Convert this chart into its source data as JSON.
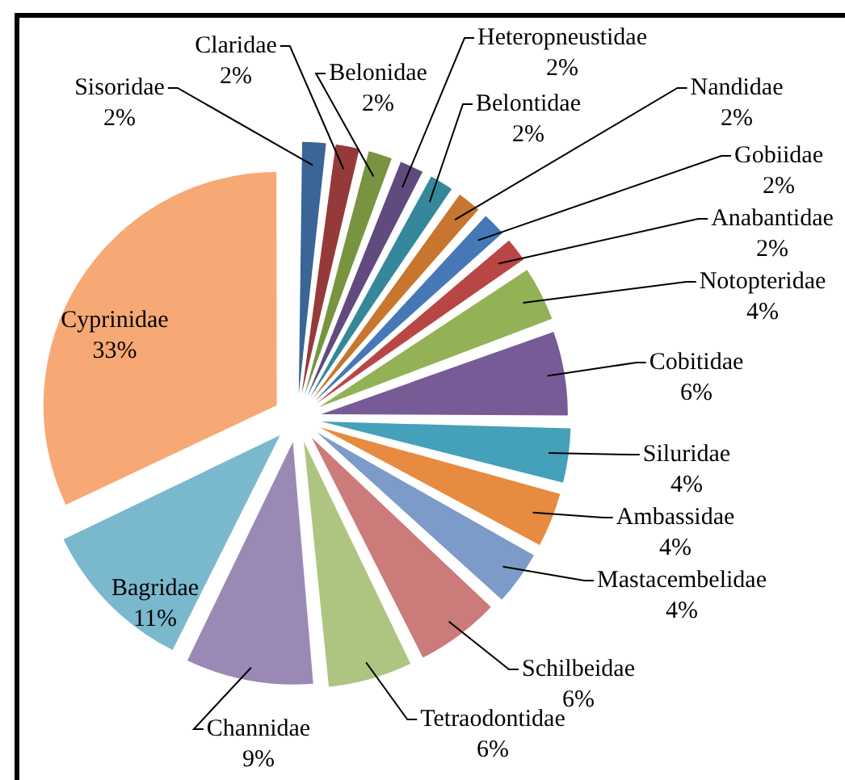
{
  "chart_data": {
    "type": "pie",
    "categories": [
      "Sisoridae",
      "Claridae",
      "Belonidae",
      "Heteropneustidae",
      "Belontidae",
      "Nandidae",
      "Gobiidae",
      "Anabantidae",
      "Notopteridae",
      "Cobitidae",
      "Siluridae",
      "Ambassidae",
      "Mastacembelidae",
      "Schilbeidae",
      "Tetraodontidae",
      "Channidae",
      "Bagridae",
      "Cyprinidae"
    ],
    "values": [
      2,
      2,
      2,
      2,
      2,
      2,
      2,
      2,
      4,
      6,
      4,
      4,
      4,
      6,
      6,
      9,
      11,
      33
    ],
    "value_labels": [
      "2%",
      "2%",
      "2%",
      "2%",
      "2%",
      "2%",
      "2%",
      "2%",
      "4%",
      "6%",
      "4%",
      "4%",
      "4%",
      "6%",
      "6%",
      "9%",
      "11%",
      "33%"
    ],
    "colors": [
      "#3a6596",
      "#963a39",
      "#789440",
      "#614a7e",
      "#35889c",
      "#c7752f",
      "#4678b8",
      "#b84645",
      "#93b155",
      "#765b97",
      "#45a0ba",
      "#e68b3f",
      "#7d9bc8",
      "#cb7b7a",
      "#aec581",
      "#9b89b5",
      "#7ab8cd",
      "#f6a975"
    ],
    "legend": false
  }
}
